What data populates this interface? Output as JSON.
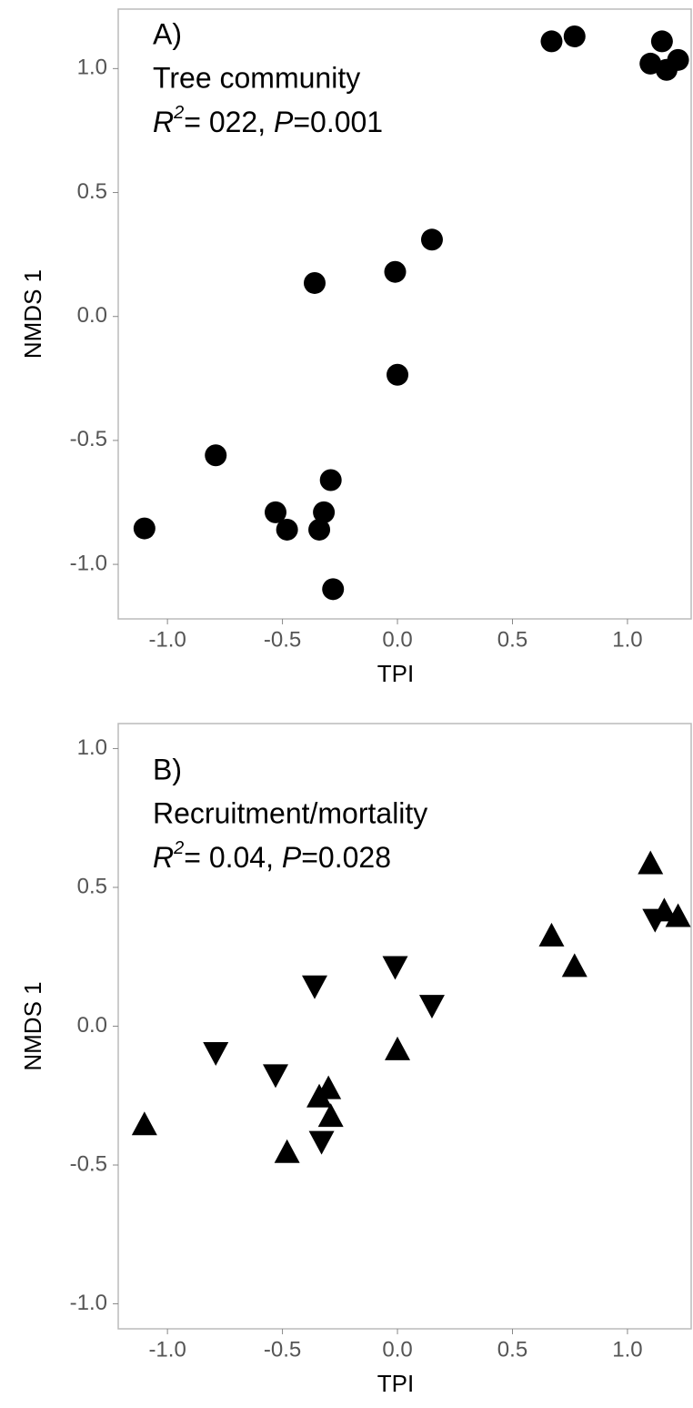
{
  "chart_data": [
    {
      "type": "scatter",
      "marker": "circle",
      "color": "#000000",
      "annotation": {
        "label": "A)",
        "subtitle": "Tree community",
        "stats": [
          "R",
          "2",
          "= 022, ",
          "P",
          "=0.001"
        ]
      },
      "x_label": "TPI",
      "y_label": "NMDS 1",
      "x": [
        -1.1,
        -0.79,
        -0.53,
        -0.48,
        -0.36,
        -0.34,
        -0.32,
        -0.29,
        -0.28,
        -0.01,
        0.0,
        0.15,
        0.67,
        0.77,
        1.1,
        1.15,
        1.17,
        1.22
      ],
      "y": [
        -0.855,
        -0.56,
        -0.79,
        -0.86,
        0.135,
        -0.86,
        -0.79,
        -0.66,
        -1.1,
        0.18,
        -0.235,
        0.31,
        1.11,
        1.13,
        1.02,
        1.11,
        0.995,
        1.035
      ],
      "xlim": [
        -1.214,
        1.277
      ],
      "ylim": [
        -1.22,
        1.24
      ],
      "xticks": [
        {
          "value": -1,
          "label": "-1.0"
        },
        -0.5,
        {
          "value": 0,
          "label": "0.0"
        },
        0.5,
        {
          "value": 1,
          "label": "1.0"
        }
      ],
      "yticks": [
        {
          "value": -1,
          "label": "-1.0"
        },
        -0.5,
        {
          "value": 0,
          "label": "0.0"
        },
        0.5,
        {
          "value": 1,
          "label": "1.0"
        }
      ]
    },
    {
      "type": "scatter",
      "marker": "triangle",
      "color": "#000000",
      "annotation": {
        "label": "B)",
        "subtitle": "Recruitment/mortality",
        "stats": [
          "R",
          "2",
          "= 0.04, ",
          "P",
          "=0.028"
        ]
      },
      "x_label": "TPI",
      "y_label": "NMDS 1",
      "x": [
        -1.1,
        -0.79,
        -0.53,
        -0.48,
        -0.36,
        -0.34,
        -0.33,
        -0.3,
        -0.29,
        -0.01,
        0.0,
        0.15,
        0.67,
        0.77,
        1.1,
        1.12,
        1.16,
        1.22
      ],
      "y": [
        -0.35,
        -0.1,
        -0.18,
        -0.45,
        0.14,
        -0.25,
        -0.42,
        -0.22,
        -0.32,
        0.21,
        -0.08,
        0.07,
        0.33,
        0.22,
        0.59,
        0.38,
        0.42,
        0.4
      ],
      "directions": [
        "up",
        "down",
        "down",
        "up",
        "down",
        "up",
        "down",
        "up",
        "up",
        "down",
        "up",
        "down",
        "up",
        "up",
        "up",
        "down",
        "up",
        "up"
      ],
      "xlim": [
        -1.214,
        1.277
      ],
      "ylim": [
        -1.09,
        1.09
      ],
      "xticks": [
        {
          "value": -1,
          "label": "-1.0"
        },
        -0.5,
        {
          "value": 0,
          "label": "0.0"
        },
        0.5,
        {
          "value": 1,
          "label": "1.0"
        }
      ],
      "yticks": [
        {
          "value": -1,
          "label": "-1.0"
        },
        -0.5,
        {
          "value": 0,
          "label": "0.0"
        },
        0.5,
        {
          "value": 1,
          "label": "1.0"
        }
      ]
    }
  ]
}
